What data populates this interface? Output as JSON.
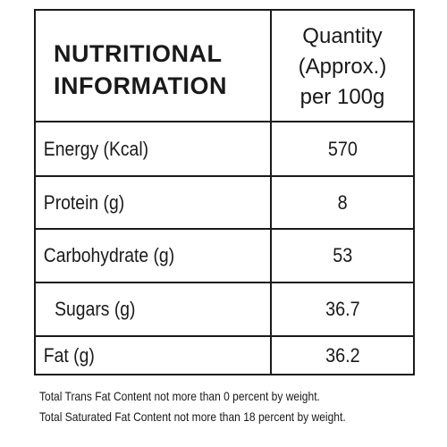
{
  "header": {
    "title": "NUTRITIONAL\nINFORMATION",
    "quantity_label": "Quantity\n(Approx.)\nper 100g"
  },
  "rows": [
    {
      "label": "Energy (Kcal)",
      "value": "570"
    },
    {
      "label": "Protein (g)",
      "value": "8"
    },
    {
      "label": "Carbohydrate (g)",
      "value": "53"
    },
    {
      "label": "Sugars (g)",
      "value": "36.7"
    },
    {
      "label": "Fat (g)",
      "value": "36.2"
    }
  ],
  "footnotes": [
    "Total Trans Fat Content not more than 0 percent by weight.",
    "Total Saturated Fat Content not more than 18 percent by weight."
  ]
}
